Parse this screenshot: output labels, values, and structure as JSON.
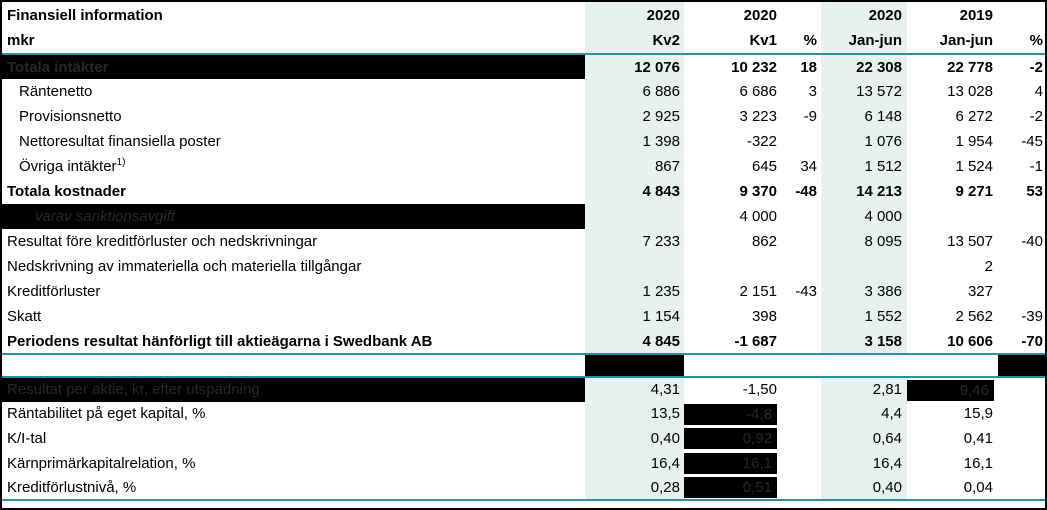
{
  "meta": {
    "colors": {
      "accent_line": "#2e8fa2",
      "column_fill": "#e7f1ef",
      "redaction": "#000000",
      "redaction_ghost_text": "#282828",
      "text": "#000000",
      "background": "#ffffff"
    }
  },
  "table": {
    "header": {
      "title": "Finansiell information",
      "unit_label": "mkr",
      "cols": [
        {
          "year": "2020",
          "period": "Kv2"
        },
        {
          "year": "2020",
          "period": "Kv1"
        },
        {
          "year": "",
          "period": "%"
        },
        {
          "year": "2020",
          "period": "Jan-jun"
        },
        {
          "year": "2019",
          "period": "Jan-jun"
        },
        {
          "year": "",
          "period": "%"
        }
      ]
    },
    "rows": [
      {
        "section": "main",
        "label": "Totala intäkter",
        "bold": true,
        "label_redacted": true,
        "values_bold": true,
        "values": [
          "12 076",
          "10 232",
          "18",
          "22 308",
          "22 778",
          "-2"
        ]
      },
      {
        "section": "main",
        "label": "Räntenetto",
        "indent": 1,
        "values": [
          "6 886",
          "6 686",
          "3",
          "13 572",
          "13 028",
          "4"
        ]
      },
      {
        "section": "main",
        "label": "Provisionsnetto",
        "indent": 1,
        "values": [
          "2 925",
          "3 223",
          "-9",
          "6 148",
          "6 272",
          "-2"
        ]
      },
      {
        "section": "main",
        "label": "Nettoresultat finansiella poster",
        "indent": 1,
        "values": [
          "1 398",
          "-322",
          "",
          "1 076",
          "1 954",
          "-45"
        ]
      },
      {
        "section": "main",
        "label": "Övriga intäkter",
        "sup": "1)",
        "indent": 1,
        "values": [
          "867",
          "645",
          "34",
          "1 512",
          "1 524",
          "-1"
        ]
      },
      {
        "section": "main",
        "label": "Totala kostnader",
        "bold": true,
        "values_bold": true,
        "values": [
          "4 843",
          "9 370",
          "-48",
          "14 213",
          "9 271",
          "53"
        ]
      },
      {
        "section": "main",
        "label": "varav sanktionsavgift",
        "indent": 2,
        "italic": true,
        "label_redacted": true,
        "values": [
          "",
          "4 000",
          "",
          "4 000",
          "",
          ""
        ]
      },
      {
        "section": "main",
        "label": "Resultat före kreditförluster och nedskrivningar",
        "values": [
          "7 233",
          "862",
          "",
          "8 095",
          "13 507",
          "-40"
        ]
      },
      {
        "section": "main",
        "label": "Nedskrivning av immateriella och materiella tillgångar",
        "values": [
          "",
          "",
          "",
          "",
          "2",
          ""
        ]
      },
      {
        "section": "main",
        "label": "Kreditförluster",
        "values": [
          "1 235",
          "2 151",
          "-43",
          "3 386",
          "327",
          ""
        ]
      },
      {
        "section": "main",
        "label": "Skatt",
        "values": [
          "1 154",
          "398",
          "",
          "1 552",
          "2 562",
          "-39"
        ]
      },
      {
        "section": "main",
        "label": "Periodens resultat hänförligt till aktieägarna i Swedbank AB",
        "bold": true,
        "values_bold": true,
        "values": [
          "4 845",
          "-1 687",
          "",
          "3 158",
          "10 606",
          "-70"
        ]
      },
      {
        "section": "spacer",
        "label": "",
        "values": [
          "",
          "",
          "",
          "",
          "",
          ""
        ],
        "black_cells": [
          0,
          5
        ]
      },
      {
        "section": "bottom",
        "label": "Resultat per aktie, kr, efter utspädning",
        "label_redacted": true,
        "values": [
          "4,31",
          "-1,50",
          "",
          "2,81",
          "9,46",
          ""
        ],
        "value_redactions": [
          4
        ]
      },
      {
        "section": "bottom",
        "label": "Räntabilitet på eget kapital, %",
        "values": [
          "13,5",
          "-4,8",
          "",
          "4,4",
          "15,9",
          ""
        ],
        "value_redactions": [
          1
        ]
      },
      {
        "section": "bottom",
        "label": "K/I-tal",
        "values": [
          "0,40",
          "0,92",
          "",
          "0,64",
          "0,41",
          ""
        ],
        "value_redactions": [
          1
        ]
      },
      {
        "section": "bottom",
        "label": "Kärnprimärkapitalrelation, %",
        "values": [
          "16,4",
          "16,1",
          "",
          "16,4",
          "16,1",
          ""
        ],
        "value_redactions": [
          1
        ]
      },
      {
        "section": "bottom",
        "label": "Kreditförlustnivå, %",
        "values": [
          "0,28",
          "0,51",
          "",
          "0,40",
          "0,04",
          ""
        ],
        "value_redactions": [
          1
        ]
      }
    ]
  }
}
